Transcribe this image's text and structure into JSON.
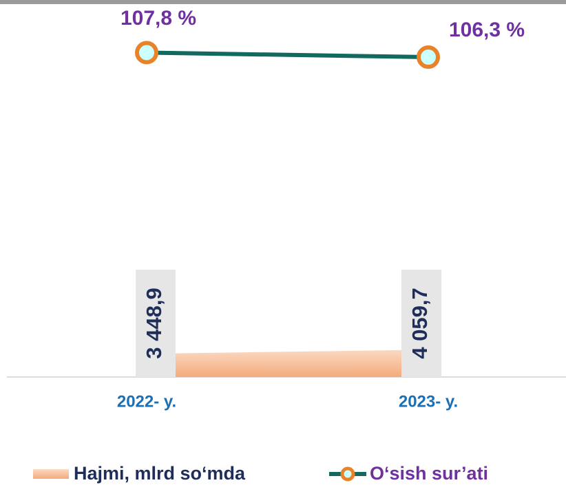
{
  "chart_data": {
    "type": "combo",
    "categories": [
      "2022- y.",
      "2023- y."
    ],
    "series": [
      {
        "name": "Hajmi, mlrd so‘mda",
        "type": "area",
        "color": "#f6bb94",
        "values": [
          3448.9,
          4059.7
        ],
        "value_labels": [
          "3 448,9",
          "4 059,7"
        ],
        "axis": "y"
      },
      {
        "name": "O‘sish sur’ati",
        "type": "line",
        "color": "#12695f",
        "marker_color": "#e8832a",
        "values": [
          107.8,
          106.3
        ],
        "value_labels": [
          "107,8 %",
          "106,3 %"
        ],
        "axis": "y2"
      }
    ],
    "ylim": [
      0,
      55000
    ],
    "y2lim": [
      0,
      123
    ]
  }
}
